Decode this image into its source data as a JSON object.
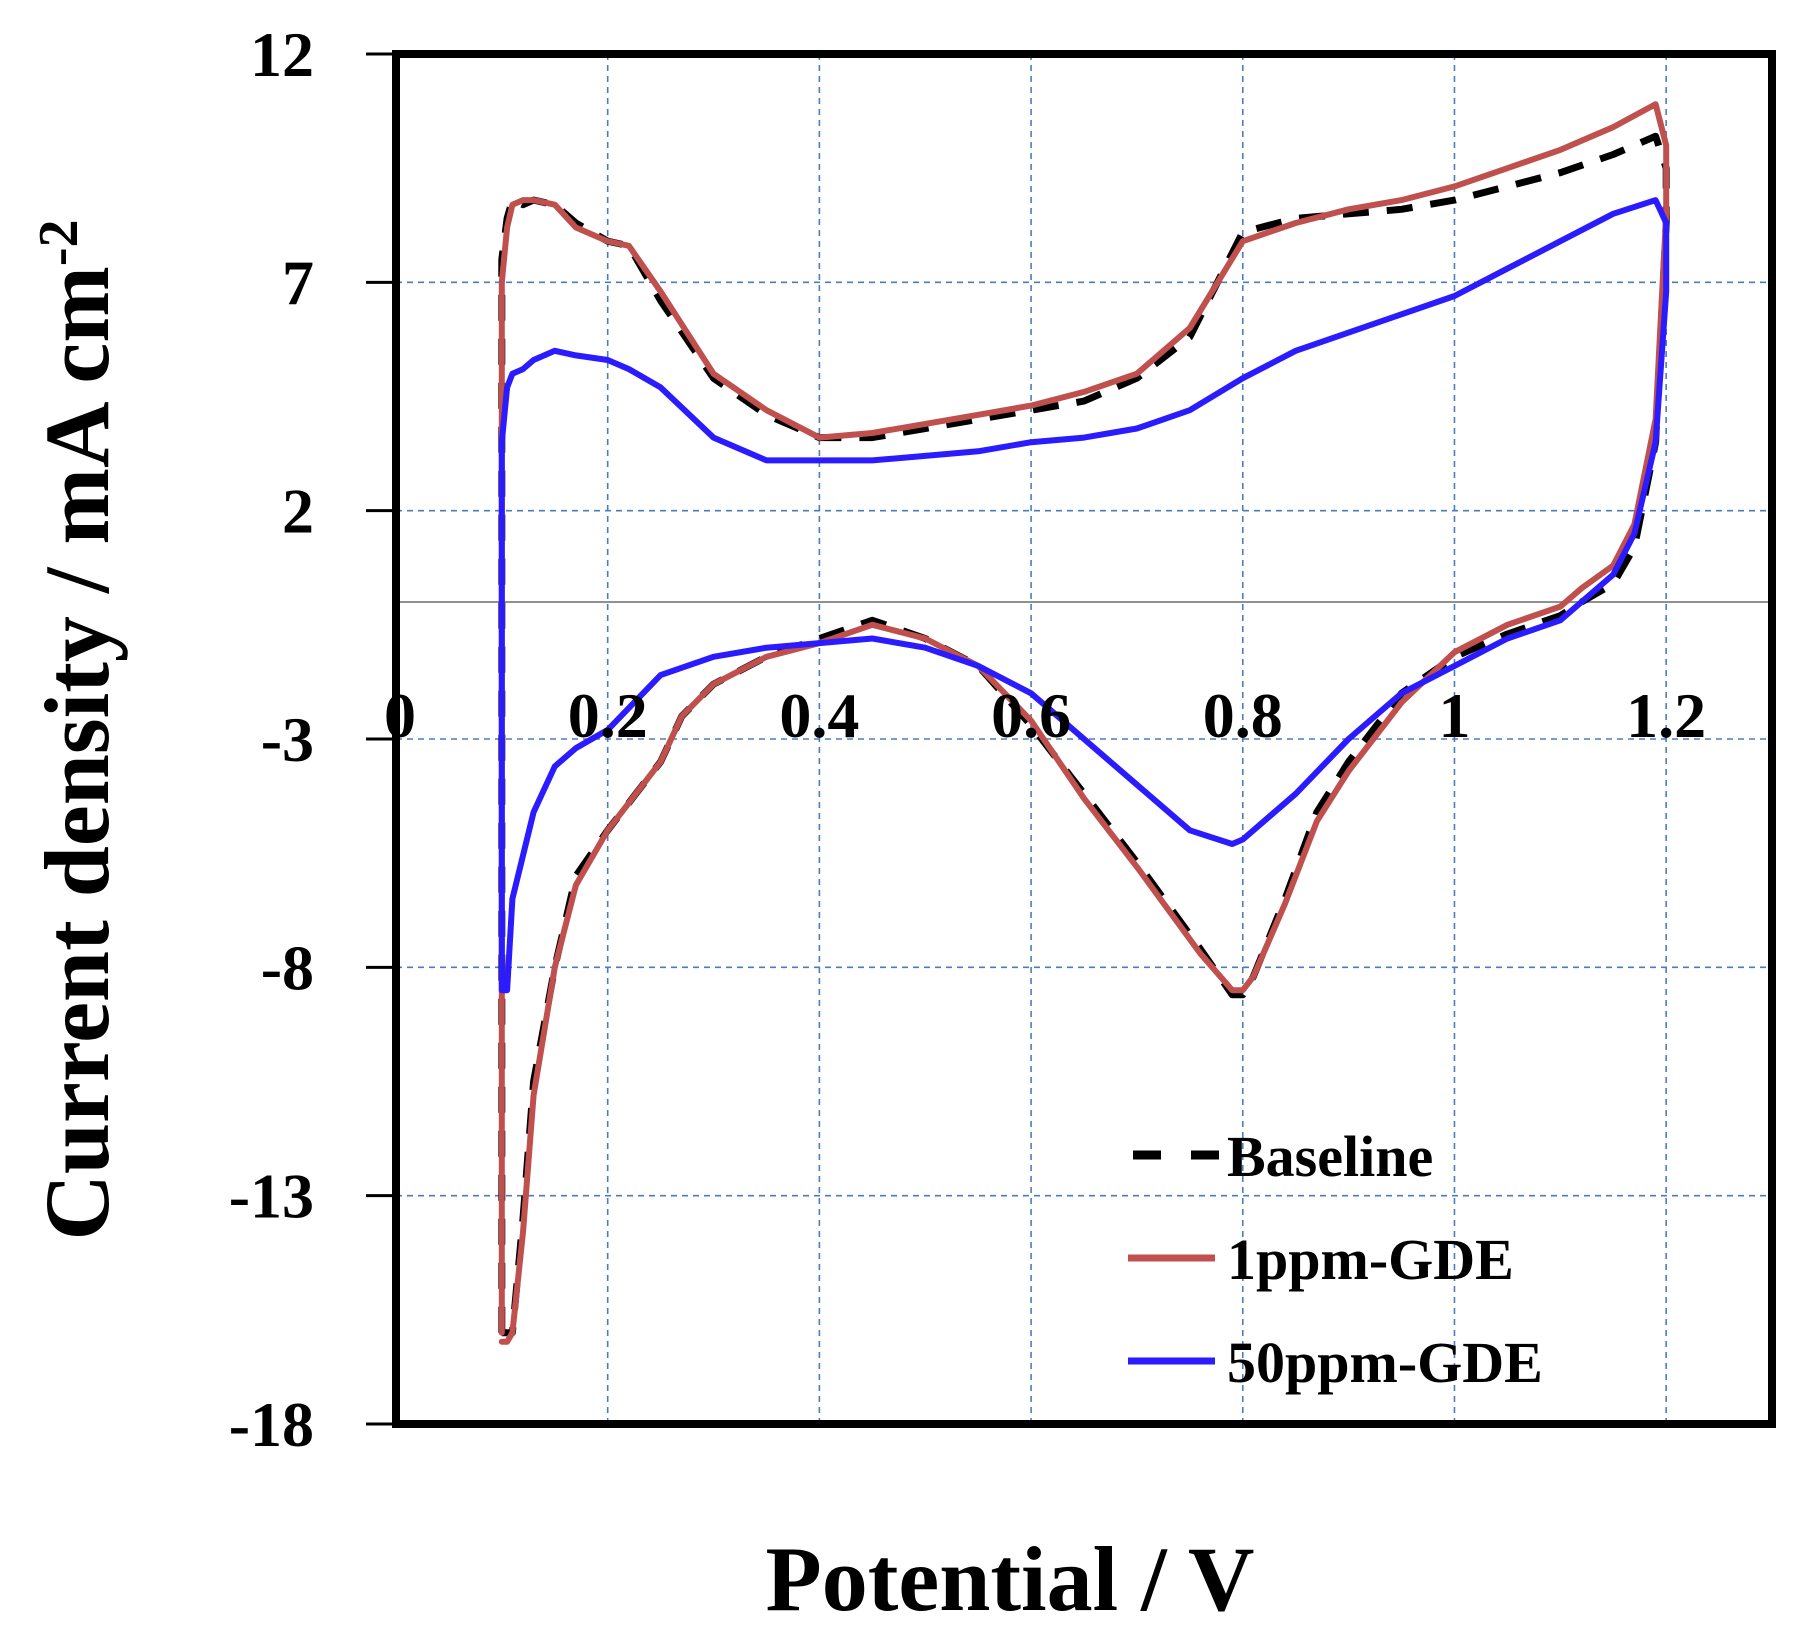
{
  "chart_data": {
    "type": "line",
    "title": "",
    "xlabel": "Potential / V",
    "ylabel": "Current density / mA cm",
    "ylabel_superscript": "-2",
    "xlim": [
      0,
      1.3
    ],
    "ylim": [
      -18,
      12
    ],
    "x_ticks": [
      0.2,
      0.4,
      0.6,
      0.8,
      1.0,
      1.2
    ],
    "x_tick_labels": [
      "0.2",
      "0.4",
      "0.6",
      "0.8",
      "1",
      "1.2"
    ],
    "x_origin_label": "0",
    "y_ticks": [
      12,
      7,
      2,
      -3,
      -8,
      -13,
      -18
    ],
    "y_tick_labels": [
      "12",
      "7",
      "2",
      "-3",
      "-8",
      "-13",
      "-18"
    ],
    "grid": true,
    "legend_position": "bottom-right",
    "series": [
      {
        "name": "Baseline",
        "color": "#000000",
        "style": "dashed",
        "x": [
          0.1,
          0.1,
          0.105,
          0.11,
          0.12,
          0.13,
          0.15,
          0.17,
          0.2,
          0.22,
          0.25,
          0.3,
          0.35,
          0.4,
          0.45,
          0.5,
          0.55,
          0.6,
          0.65,
          0.7,
          0.75,
          0.8,
          0.85,
          0.9,
          0.95,
          1.0,
          1.05,
          1.1,
          1.15,
          1.19,
          1.2,
          1.2,
          1.19,
          1.17,
          1.15,
          1.12,
          1.1,
          1.05,
          1.0,
          0.95,
          0.9,
          0.87,
          0.84,
          0.81,
          0.8,
          0.79,
          0.76,
          0.7,
          0.65,
          0.6,
          0.55,
          0.5,
          0.45,
          0.4,
          0.35,
          0.3,
          0.27,
          0.25,
          0.2,
          0.17,
          0.15,
          0.13,
          0.12,
          0.11,
          0.105,
          0.1
        ],
        "y": [
          -16,
          7.5,
          8.4,
          8.8,
          8.7,
          8.8,
          8.7,
          8.3,
          7.9,
          7.8,
          6.6,
          4.9,
          4.1,
          3.6,
          3.6,
          3.8,
          4.0,
          4.2,
          4.4,
          4.9,
          5.8,
          8.1,
          8.4,
          8.5,
          8.6,
          8.8,
          9.1,
          9.4,
          9.8,
          10.2,
          9.5,
          8.3,
          3.5,
          1.2,
          0.4,
          0.0,
          -0.3,
          -0.7,
          -1.2,
          -2.0,
          -3.5,
          -4.6,
          -6.5,
          -8.2,
          -8.6,
          -8.6,
          -7.6,
          -5.7,
          -4.2,
          -2.7,
          -1.4,
          -0.8,
          -0.4,
          -0.8,
          -1.2,
          -1.8,
          -2.5,
          -3.5,
          -5.0,
          -6.0,
          -8.0,
          -10.5,
          -13.5,
          -16.0,
          -16.0,
          -16.0
        ]
      },
      {
        "name": "1ppm-GDE",
        "color": "#c0504d",
        "style": "solid",
        "x": [
          0.1,
          0.1,
          0.105,
          0.11,
          0.12,
          0.13,
          0.15,
          0.17,
          0.2,
          0.22,
          0.25,
          0.3,
          0.35,
          0.4,
          0.45,
          0.5,
          0.55,
          0.6,
          0.65,
          0.7,
          0.75,
          0.8,
          0.85,
          0.9,
          0.95,
          1.0,
          1.05,
          1.1,
          1.15,
          1.19,
          1.2,
          1.2,
          1.19,
          1.17,
          1.15,
          1.12,
          1.1,
          1.05,
          1.0,
          0.95,
          0.9,
          0.87,
          0.84,
          0.81,
          0.8,
          0.79,
          0.76,
          0.7,
          0.65,
          0.6,
          0.55,
          0.5,
          0.45,
          0.4,
          0.35,
          0.3,
          0.27,
          0.25,
          0.2,
          0.17,
          0.15,
          0.13,
          0.12,
          0.11,
          0.105,
          0.1
        ],
        "y": [
          -16,
          7.0,
          8.2,
          8.7,
          8.8,
          8.8,
          8.7,
          8.2,
          7.9,
          7.8,
          6.8,
          5.0,
          4.2,
          3.6,
          3.7,
          3.9,
          4.1,
          4.3,
          4.6,
          5.0,
          6.0,
          7.9,
          8.3,
          8.6,
          8.8,
          9.1,
          9.5,
          9.9,
          10.4,
          10.9,
          10.0,
          8.5,
          4.0,
          1.7,
          0.8,
          0.3,
          -0.1,
          -0.5,
          -1.1,
          -2.2,
          -3.7,
          -4.8,
          -6.6,
          -8.2,
          -8.5,
          -8.5,
          -7.7,
          -5.8,
          -4.3,
          -2.6,
          -1.4,
          -0.8,
          -0.5,
          -0.9,
          -1.2,
          -1.8,
          -2.5,
          -3.5,
          -5.0,
          -6.2,
          -8.0,
          -10.8,
          -13.8,
          -16.0,
          -16.2,
          -16.2
        ]
      },
      {
        "name": "50ppm-GDE",
        "color": "#2b1bff",
        "style": "solid",
        "x": [
          0.1,
          0.1,
          0.105,
          0.11,
          0.12,
          0.13,
          0.15,
          0.17,
          0.2,
          0.22,
          0.25,
          0.3,
          0.35,
          0.4,
          0.45,
          0.5,
          0.55,
          0.6,
          0.65,
          0.7,
          0.75,
          0.8,
          0.85,
          0.9,
          0.95,
          1.0,
          1.05,
          1.1,
          1.15,
          1.19,
          1.2,
          1.2,
          1.19,
          1.17,
          1.15,
          1.12,
          1.1,
          1.05,
          1.0,
          0.95,
          0.9,
          0.85,
          0.8,
          0.79,
          0.75,
          0.7,
          0.65,
          0.6,
          0.55,
          0.5,
          0.45,
          0.4,
          0.35,
          0.3,
          0.25,
          0.2,
          0.17,
          0.15,
          0.13,
          0.11,
          0.105,
          0.1
        ],
        "y": [
          -8.5,
          3.5,
          4.7,
          5.0,
          5.1,
          5.3,
          5.5,
          5.4,
          5.3,
          5.1,
          4.7,
          3.6,
          3.1,
          3.1,
          3.1,
          3.2,
          3.3,
          3.5,
          3.6,
          3.8,
          4.2,
          4.9,
          5.5,
          5.9,
          6.3,
          6.7,
          7.3,
          7.9,
          8.5,
          8.8,
          8.3,
          6.8,
          3.5,
          1.5,
          0.6,
          0.0,
          -0.4,
          -0.8,
          -1.4,
          -2.0,
          -3.0,
          -4.2,
          -5.2,
          -5.3,
          -5.0,
          -4.0,
          -3.0,
          -2.0,
          -1.4,
          -1.0,
          -0.8,
          -0.9,
          -1.0,
          -1.2,
          -1.6,
          -2.8,
          -3.2,
          -3.6,
          -4.6,
          -6.5,
          -8.5,
          -8.5
        ]
      }
    ]
  }
}
